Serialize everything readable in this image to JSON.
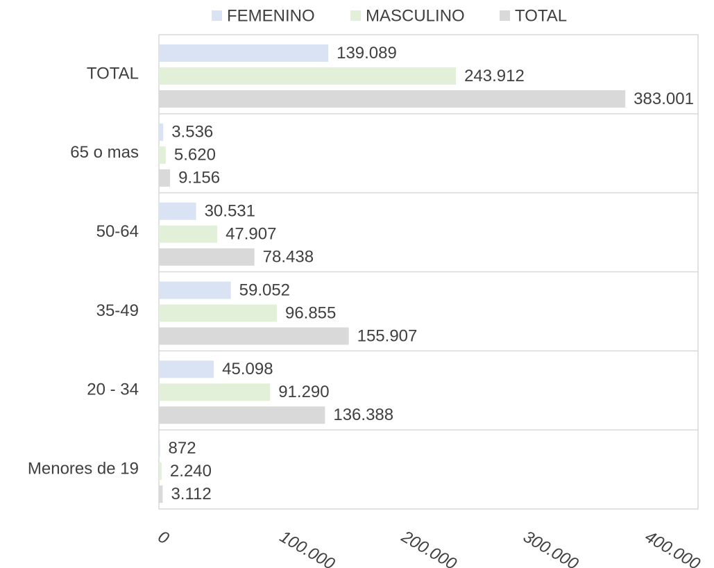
{
  "chart_data": {
    "type": "barh",
    "categories": [
      "TOTAL",
      "65 o mas",
      "50-64",
      "35-49",
      "20 - 34",
      "Menores de 19"
    ],
    "series": [
      {
        "name": "FEMENINO",
        "color": "#dae3f3",
        "label_color": "#8faadc",
        "values": [
          139089,
          3536,
          30531,
          59052,
          45098,
          872
        ],
        "value_labels": [
          "139.089",
          "3.536",
          "30.531",
          "59.052",
          "45.098",
          "872"
        ]
      },
      {
        "name": "MASCULINO",
        "color": "#e2efd9",
        "label_color": "#b4cc86",
        "values": [
          243912,
          5620,
          47907,
          96855,
          91290,
          2240
        ],
        "value_labels": [
          "243.912",
          "5.620",
          "47.907",
          "96.855",
          "91.290",
          "2.240"
        ]
      },
      {
        "name": "TOTAL",
        "color": "#d9d9d9",
        "label_color": "#767676",
        "values": [
          383001,
          9156,
          78438,
          155907,
          136388,
          3112
        ],
        "value_labels": [
          "383.001",
          "9.156",
          "78.438",
          "155.907",
          "136.388",
          "3.112"
        ]
      }
    ],
    "xlim": [
      0,
      400000
    ],
    "xticks": [
      0,
      {
        "value": 100000,
        "label": "100.000"
      },
      {
        "value": 200000,
        "label": "200.000"
      },
      {
        "value": 300000,
        "label": "300.000"
      },
      {
        "value": 400000,
        "label": "400.000"
      }
    ],
    "legend": "top"
  }
}
